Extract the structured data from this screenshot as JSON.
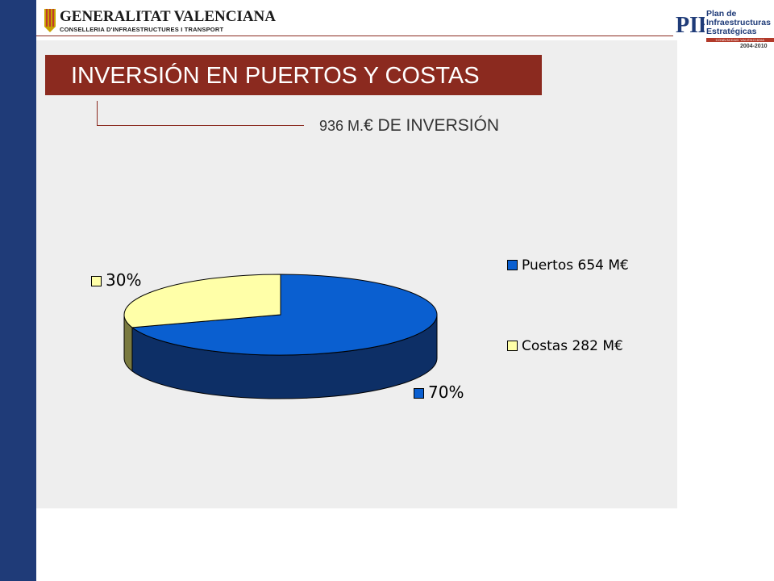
{
  "header": {
    "org_name": "GENERALITAT VALENCIANA",
    "org_sub": "CONSELLERIA D'INFRAESTRUCTURES I TRANSPORT",
    "plan_lines": [
      "Plan de",
      "Infraestructuras",
      "Estratégicas"
    ],
    "plan_band": "COMUNIDAD VALENCIANA",
    "plan_years": "2004-2010"
  },
  "slide": {
    "title": "INVERSIÓN EN PUERTOS Y COSTAS",
    "subtitle_prefix": "936 M.",
    "subtitle_rest": "€ DE INVERSIÓN"
  },
  "colors": {
    "brand_blue": "#1f3b78",
    "title_red": "#8b2a1f",
    "puertos": "#0a5fd0",
    "puertos_side": "#0d2f66",
    "costas": "#ffffa8",
    "costas_side": "#7a7a40"
  },
  "chart_data": {
    "type": "pie",
    "style": "3d",
    "categories": [
      "Puertos 654 M€",
      "Costas 282 M€"
    ],
    "values": [
      654,
      282
    ],
    "percent_labels": [
      "70%",
      "30%"
    ],
    "legend_position": "right"
  }
}
